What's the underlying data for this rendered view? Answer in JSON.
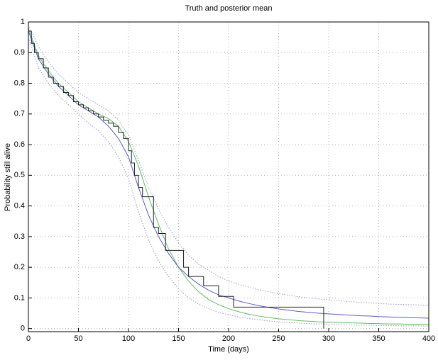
{
  "chart_data": {
    "type": "line",
    "title": "Truth and posterior mean",
    "x_label": "Time (days)",
    "y_label": "Probability still alive",
    "x": [
      0,
      10,
      20,
      30,
      40,
      50,
      60,
      70,
      80,
      90,
      100,
      110,
      120,
      130,
      140,
      150,
      160,
      170,
      180,
      190,
      200,
      210,
      220,
      230,
      240,
      250,
      260,
      270,
      280,
      290,
      300,
      310,
      320,
      330,
      340,
      350,
      360,
      370,
      380,
      390,
      400
    ],
    "series": [
      {
        "color": "#9a9ad6",
        "dash": true,
        "values": [
          0.99,
          0.92,
          0.87,
          0.83,
          0.8,
          0.77,
          0.75,
          0.73,
          0.71,
          0.68,
          0.63,
          0.55,
          0.46,
          0.39,
          0.33,
          0.28,
          0.24,
          0.21,
          0.19,
          0.17,
          0.155,
          0.145,
          0.135,
          0.127,
          0.12,
          0.114,
          0.109,
          0.104,
          0.1,
          0.097,
          0.094,
          0.091,
          0.088,
          0.086,
          0.084,
          0.082,
          0.08,
          0.079,
          0.078,
          0.077,
          0.076
        ]
      },
      {
        "color": "#9a9ad6",
        "dash": true,
        "values": [
          0.95,
          0.85,
          0.8,
          0.76,
          0.73,
          0.7,
          0.67,
          0.645,
          0.61,
          0.56,
          0.49,
          0.38,
          0.29,
          0.22,
          0.17,
          0.13,
          0.1,
          0.08,
          0.065,
          0.053,
          0.045,
          0.038,
          0.033,
          0.029,
          0.025,
          0.022,
          0.02,
          0.018,
          0.016,
          0.015,
          0.014,
          0.013,
          0.012,
          0.011,
          0.011,
          0.01,
          0.01,
          0.009,
          0.009,
          0.009,
          0.008
        ]
      },
      {
        "color": "#5cbf5c",
        "values": [
          0.98,
          0.89,
          0.84,
          0.8,
          0.77,
          0.74,
          0.72,
          0.7,
          0.685,
          0.66,
          0.61,
          0.53,
          0.43,
          0.34,
          0.26,
          0.2,
          0.155,
          0.12,
          0.095,
          0.078,
          0.065,
          0.055,
          0.047,
          0.041,
          0.036,
          0.032,
          0.029,
          0.026,
          0.024,
          0.022,
          0.021,
          0.02,
          0.019,
          0.018,
          0.017,
          0.016,
          0.015,
          0.015,
          0.014,
          0.014,
          0.013
        ]
      },
      {
        "color": "#5a5ad0",
        "values": [
          0.97,
          0.88,
          0.83,
          0.79,
          0.76,
          0.73,
          0.71,
          0.69,
          0.66,
          0.62,
          0.56,
          0.46,
          0.37,
          0.3,
          0.245,
          0.2,
          0.17,
          0.145,
          0.125,
          0.11,
          0.1,
          0.09,
          0.082,
          0.075,
          0.069,
          0.064,
          0.06,
          0.056,
          0.053,
          0.05,
          0.048,
          0.046,
          0.044,
          0.042,
          0.041,
          0.039,
          0.038,
          0.037,
          0.036,
          0.035,
          0.034
        ]
      },
      {
        "color": "#222222",
        "step": true,
        "x": [
          0,
          3,
          6,
          10,
          15,
          20,
          25,
          30,
          35,
          40,
          45,
          50,
          55,
          60,
          65,
          70,
          75,
          80,
          85,
          90,
          95,
          100,
          103,
          106,
          110,
          114,
          125,
          130,
          137,
          155,
          160,
          175,
          190,
          205,
          295
        ],
        "values": [
          0.97,
          0.93,
          0.9,
          0.88,
          0.85,
          0.82,
          0.8,
          0.79,
          0.77,
          0.76,
          0.74,
          0.73,
          0.72,
          0.71,
          0.7,
          0.69,
          0.68,
          0.67,
          0.66,
          0.64,
          0.62,
          0.58,
          0.54,
          0.5,
          0.46,
          0.43,
          0.33,
          0.31,
          0.255,
          0.2,
          0.17,
          0.14,
          0.105,
          0.07,
          0
        ]
      }
    ],
    "xlim": [
      0,
      400
    ],
    "ylim": [
      -0.01,
      1
    ],
    "xticks": [
      0,
      50,
      100,
      150,
      200,
      250,
      300,
      350,
      400
    ],
    "yticks": [
      0,
      0.1,
      0.2,
      0.3,
      0.4,
      0.5,
      0.6,
      0.7,
      0.8,
      0.9,
      1
    ],
    "grid": true
  }
}
